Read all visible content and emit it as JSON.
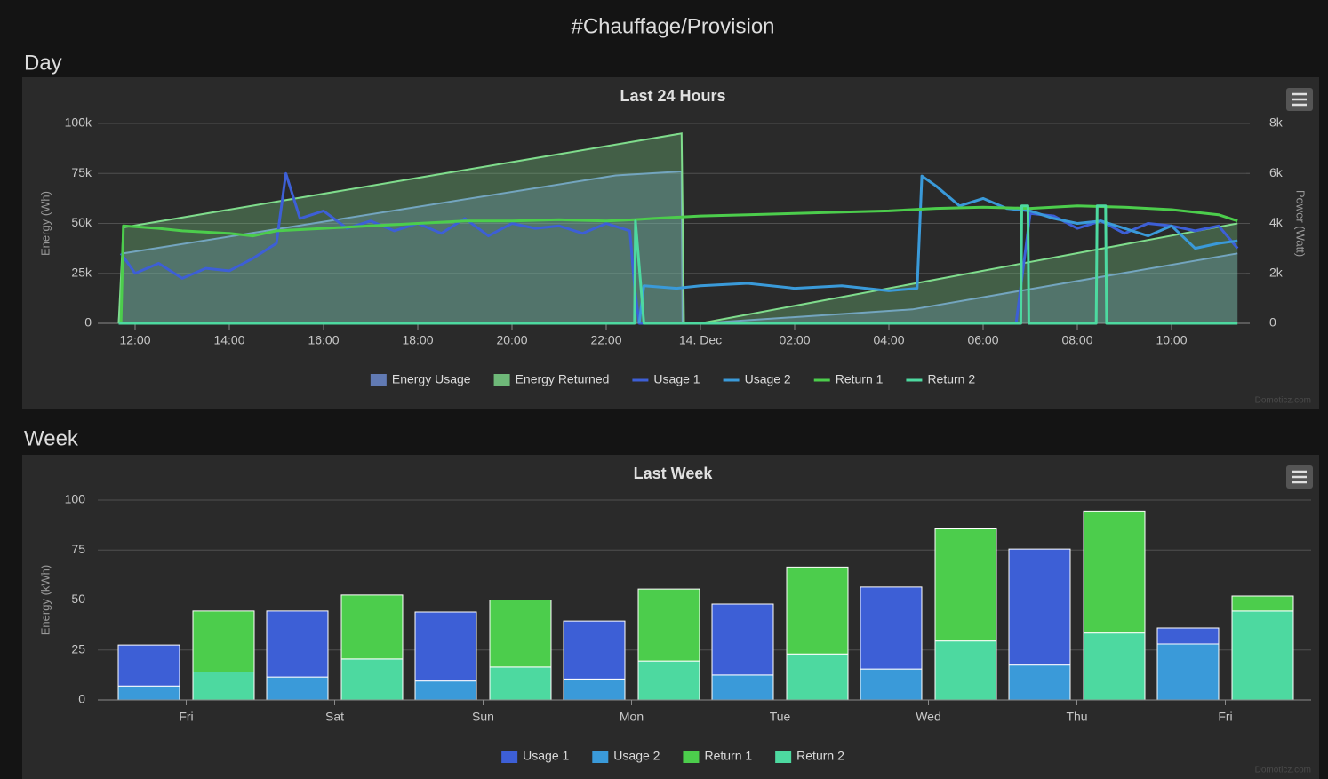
{
  "page_title": "#Chauffage/Provision",
  "chart_data": [
    {
      "type": "line",
      "section": "Day",
      "title": "Last 24 Hours",
      "y_label": "Energy (Wh)",
      "y2_label": "Power (Watt)",
      "credits": "Domoticz.com",
      "grid": true,
      "legend": "bottom",
      "xlim": [
        11.6,
        35.5
      ],
      "xticks": [
        {
          "value": 12,
          "label": "12:00"
        },
        {
          "value": 14,
          "label": "14:00"
        },
        {
          "value": 16,
          "label": "16:00"
        },
        {
          "value": 18,
          "label": "18:00"
        },
        {
          "value": 20,
          "label": "20:00"
        },
        {
          "value": 22,
          "label": "22:00"
        },
        {
          "value": 24,
          "label": "14. Dec"
        },
        {
          "value": 26,
          "label": "02:00"
        },
        {
          "value": 28,
          "label": "04:00"
        },
        {
          "value": 30,
          "label": "06:00"
        },
        {
          "value": 32,
          "label": "08:00"
        },
        {
          "value": 34,
          "label": "10:00"
        }
      ],
      "ylim": [
        0,
        100000
      ],
      "yticks": [
        0,
        {
          "value": 25000,
          "label": "25k"
        },
        {
          "value": 50000,
          "label": "50k"
        },
        {
          "value": 75000,
          "label": "75k"
        },
        {
          "value": 100000,
          "label": "100k"
        }
      ],
      "y2lim": [
        0,
        8000
      ],
      "y2ticks": [
        0,
        {
          "value": 2000,
          "label": "2k"
        },
        {
          "value": 4000,
          "label": "4k"
        },
        {
          "value": 6000,
          "label": "6k"
        },
        {
          "value": 8000,
          "label": "8k"
        }
      ],
      "series": [
        {
          "name": "Energy Usage",
          "type": "area",
          "axis": "y",
          "color": "#6f8fd6",
          "x": [
            11.65,
            11.75,
            22.2,
            23.6,
            23.62,
            24.0,
            28.5,
            35.4
          ],
          "values": [
            0,
            35000,
            74000,
            76000,
            0,
            0,
            7000,
            35000
          ]
        },
        {
          "name": "Energy Returned",
          "type": "area",
          "axis": "y",
          "color": "#7fdc8c",
          "x": [
            11.65,
            11.75,
            23.6,
            23.65,
            24.0,
            35.4
          ],
          "values": [
            0,
            48000,
            95000,
            0,
            0,
            50000
          ]
        },
        {
          "name": "Usage 1",
          "type": "line",
          "axis": "y2",
          "color": "#3d5fd6",
          "x": [
            11.7,
            12.0,
            12.5,
            13.0,
            13.5,
            14.0,
            14.5,
            15.0,
            15.2,
            15.5,
            16.0,
            16.5,
            17.0,
            17.5,
            18.0,
            18.5,
            19.0,
            19.5,
            20.0,
            20.5,
            21.0,
            21.5,
            22.0,
            22.5,
            22.6,
            22.7,
            30.7,
            31.0,
            31.5,
            32.0,
            32.5,
            33.0,
            33.5,
            34.0,
            34.5,
            35.0,
            35.4
          ],
          "values": [
            2800,
            2000,
            2400,
            1800,
            2200,
            2100,
            2600,
            3200,
            6000,
            4200,
            4500,
            3800,
            4100,
            3700,
            4000,
            3600,
            4200,
            3500,
            4000,
            3800,
            3900,
            3600,
            4000,
            3700,
            1500,
            0,
            0,
            4400,
            4300,
            3800,
            4100,
            3600,
            4000,
            3900,
            3700,
            3900,
            3000
          ]
        },
        {
          "name": "Usage 2",
          "type": "line",
          "axis": "y2",
          "color": "#3a9ad9",
          "x": [
            22.7,
            22.8,
            23.5,
            24.0,
            25.0,
            26.0,
            27.0,
            28.0,
            28.6,
            28.7,
            29.0,
            29.5,
            30.0,
            30.5,
            31.0,
            31.5,
            32.0,
            32.5,
            33.0,
            33.5,
            34.0,
            34.5,
            35.0,
            35.4
          ],
          "values": [
            0,
            1500,
            1400,
            1500,
            1600,
            1400,
            1500,
            1300,
            1400,
            5900,
            5500,
            4700,
            5000,
            4600,
            4500,
            4200,
            4000,
            4100,
            3800,
            3500,
            3900,
            3000,
            3200,
            3300
          ]
        },
        {
          "name": "Return 1",
          "type": "line",
          "axis": "y2",
          "color": "#4ccd4c",
          "x": [
            11.7,
            11.75,
            12.5,
            13.0,
            14.0,
            14.5,
            15.0,
            16.0,
            17.0,
            18.0,
            19.0,
            20.0,
            21.0,
            22.0,
            22.6,
            23.0,
            24.0,
            25.0,
            26.0,
            27.0,
            28.0,
            29.0,
            30.0,
            31.0,
            32.0,
            33.0,
            34.0,
            35.0,
            35.4
          ],
          "values": [
            0,
            3900,
            3800,
            3700,
            3600,
            3500,
            3700,
            3800,
            3900,
            4000,
            4100,
            4100,
            4150,
            4100,
            4150,
            4200,
            4300,
            4350,
            4400,
            4450,
            4500,
            4600,
            4650,
            4600,
            4700,
            4650,
            4550,
            4350,
            4100
          ]
        },
        {
          "name": "Return 2",
          "type": "line",
          "axis": "y2",
          "color": "#4dd9a0",
          "x": [
            11.65,
            22.6,
            22.62,
            22.8,
            30.8,
            30.82,
            30.95,
            30.97,
            32.4,
            32.42,
            32.6,
            32.62,
            35.4
          ],
          "values": [
            0,
            0,
            4100,
            0,
            0,
            4700,
            4700,
            0,
            0,
            4700,
            4700,
            0,
            0
          ]
        }
      ]
    },
    {
      "type": "bar",
      "stacked": true,
      "section": "Week",
      "title": "Last Week",
      "y_label": "Energy (kWh)",
      "credits": "Domoticz.com",
      "grid": true,
      "legend": "bottom",
      "categories": [
        "Fri",
        "Sat",
        "Sun",
        "Mon",
        "Tue",
        "Wed",
        "Thu",
        "Fri"
      ],
      "ylim": [
        0,
        100
      ],
      "yticks": [
        0,
        25,
        50,
        75,
        100
      ],
      "series": [
        {
          "name": "Usage 1",
          "stack": "usage",
          "color": "#3d5fd6",
          "values": [
            20.5,
            33,
            34.5,
            29,
            35.5,
            41,
            58,
            8
          ]
        },
        {
          "name": "Usage 2",
          "stack": "usage",
          "color": "#3a9ad9",
          "values": [
            7,
            11.5,
            9.5,
            10.5,
            12.5,
            15.5,
            17.5,
            28
          ]
        },
        {
          "name": "Return 1",
          "stack": "return",
          "color": "#4ccd4c",
          "values": [
            30.5,
            32,
            33.5,
            36,
            43.5,
            56.5,
            61,
            7.5
          ]
        },
        {
          "name": "Return 2",
          "stack": "return",
          "color": "#4dd9a0",
          "values": [
            14,
            20.5,
            16.5,
            19.5,
            23,
            29.5,
            33.5,
            44.5
          ]
        }
      ]
    }
  ]
}
